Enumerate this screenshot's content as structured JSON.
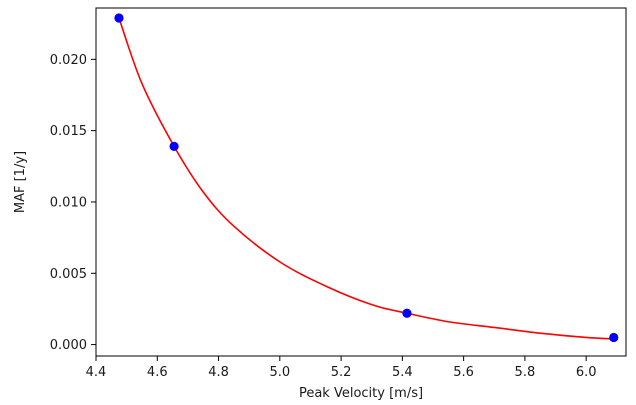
{
  "chart_data": {
    "type": "scatter",
    "title": "",
    "xlabel": "Peak Velocity [m/s]",
    "ylabel": "MAF [1/y]",
    "xlim": [
      4.4,
      6.13
    ],
    "ylim": [
      -0.0008,
      0.0236
    ],
    "xticks": [
      4.4,
      4.6,
      4.8,
      5.0,
      5.2,
      5.4,
      5.6,
      5.8,
      6.0
    ],
    "xtick_labels": [
      "4.4",
      "4.6",
      "4.8",
      "5.0",
      "5.2",
      "5.4",
      "5.6",
      "5.8",
      "6.0"
    ],
    "yticks": [
      0.0,
      0.005,
      0.01,
      0.015,
      0.02
    ],
    "ytick_labels": [
      "0.000",
      "0.005",
      "0.010",
      "0.015",
      "0.020"
    ],
    "grid": false,
    "series": [
      {
        "kind": "scatter",
        "color": "#0000ff",
        "x": [
          4.475,
          4.655,
          5.415,
          6.09
        ],
        "y": [
          0.0229,
          0.0139,
          0.0022,
          0.0005
        ]
      },
      {
        "kind": "fit-line",
        "color": "#ff0000",
        "x": [
          4.475,
          4.55,
          4.655,
          4.75,
          4.85,
          5.0,
          5.15,
          5.3,
          5.415,
          5.55,
          5.7,
          5.85,
          6.0,
          6.09
        ],
        "y": [
          0.0229,
          0.0183,
          0.0139,
          0.0107,
          0.0083,
          0.0058,
          0.0041,
          0.0028,
          0.0022,
          0.0016,
          0.0012,
          0.0008,
          0.0005,
          0.0004
        ]
      }
    ]
  }
}
